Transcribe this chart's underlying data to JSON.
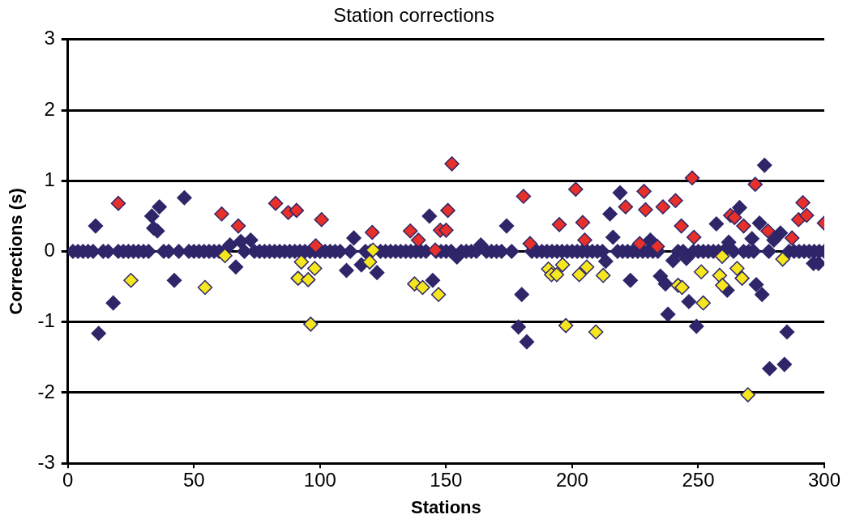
{
  "chart_data": {
    "type": "scatter",
    "title": "Station corrections",
    "xlabel": "Stations",
    "ylabel": "Corrections (s)",
    "xlim": [
      0,
      300
    ],
    "xticks": [
      0,
      50,
      100,
      150,
      200,
      250,
      300
    ],
    "ylim": [
      -3,
      3
    ],
    "yticks": [
      -3,
      -2,
      -1,
      0,
      1,
      2,
      3
    ],
    "grid": "y",
    "marker": "diamond",
    "legend": false,
    "series": [
      {
        "color": "#2e2669",
        "x": [
          2,
          4,
          6,
          8,
          10,
          14,
          16,
          20,
          22,
          24,
          26,
          28,
          30,
          32,
          38,
          40,
          44,
          48,
          50,
          52,
          54,
          56,
          58,
          60,
          62,
          70,
          74,
          76,
          78,
          80,
          82,
          84,
          86,
          88,
          90,
          92,
          94,
          96,
          98,
          100,
          102,
          104,
          106,
          108,
          112,
          118,
          120,
          124,
          126,
          128,
          130,
          132,
          134,
          136,
          138,
          140,
          142,
          146,
          148,
          150,
          152,
          156,
          158,
          160,
          162,
          166,
          168,
          170,
          172,
          176,
          184,
          186,
          188,
          190,
          192,
          194,
          196,
          198,
          200,
          202,
          204,
          206,
          208,
          210,
          212,
          218,
          220,
          222,
          224,
          226,
          228,
          230,
          232,
          234,
          242,
          244,
          248,
          250,
          252,
          254,
          256,
          258,
          260,
          264,
          268,
          270,
          272,
          278,
          286,
          288,
          290,
          292,
          294,
          296,
          298,
          300,
          11,
          12.2,
          18,
          33.3,
          34,
          35.5,
          36.3,
          42.2,
          46.2,
          64.3,
          66.6,
          68.6,
          72.5,
          110.5,
          113.4,
          116.4,
          122.6,
          143.4,
          144.7,
          154.3,
          163.8,
          174,
          178.7,
          180,
          182,
          213.3,
          215,
          216.2,
          219,
          223.1,
          231,
          235,
          237,
          238,
          240,
          245.3,
          246.3,
          249.3,
          257.2,
          261.5,
          262.1,
          266.4,
          271.3,
          273,
          274.3,
          275.3,
          276.3,
          278.3,
          280,
          282.6,
          284.2,
          285.2,
          295.7,
          297.7
        ],
        "values": [
          0,
          0,
          0,
          0,
          0,
          0,
          0,
          0,
          0,
          0,
          0,
          0,
          0,
          0,
          0,
          0,
          0,
          0,
          0,
          0,
          0,
          0,
          0,
          0,
          0,
          0,
          0,
          0,
          0,
          0,
          0,
          0,
          0,
          0,
          0,
          0,
          0,
          0,
          0,
          0,
          0,
          0,
          0,
          0,
          0,
          0,
          0,
          0,
          0,
          0,
          0,
          0,
          0,
          0,
          0,
          0,
          0,
          0,
          0,
          0,
          0,
          0,
          0,
          0,
          0,
          0,
          0,
          0,
          0,
          0,
          0,
          0,
          0,
          0,
          0,
          0,
          0,
          0,
          0,
          0,
          0,
          0,
          0,
          0,
          0,
          0,
          0,
          0,
          0,
          0,
          0,
          0,
          0,
          0,
          0,
          0,
          0,
          0,
          0,
          0,
          0,
          0,
          0,
          0,
          0,
          0,
          0,
          0,
          0,
          0,
          0,
          0,
          0,
          0,
          0,
          0,
          0.36,
          -1.16,
          -0.73,
          0.5,
          0.33,
          0.29,
          0.63,
          -0.41,
          0.76,
          0.09,
          -0.22,
          0.14,
          0.16,
          -0.27,
          0.19,
          -0.19,
          -0.3,
          0.5,
          -0.41,
          -0.08,
          0.09,
          0.36,
          -1.07,
          -0.61,
          -1.28,
          -0.14,
          0.53,
          0.2,
          0.83,
          -0.41,
          0.16,
          -0.35,
          -0.46,
          -0.89,
          -0.13,
          -0.1,
          -0.71,
          -1.06,
          0.39,
          -0.55,
          0.13,
          0.62,
          0.18,
          -0.47,
          0.4,
          -0.61,
          1.22,
          -1.66,
          0.16,
          0.26,
          -1.6,
          -1.14,
          -0.17,
          -0.17
        ]
      },
      {
        "color": "#e8302a",
        "x": [
          20,
          61,
          67.6,
          82.4,
          87.4,
          90.7,
          98.3,
          100.6,
          120.7,
          135.8,
          139,
          145.7,
          147.7,
          150,
          150.7,
          152.3,
          180.7,
          183.3,
          194.9,
          201.4,
          204.2,
          205,
          221.2,
          226.8,
          228.5,
          229.1,
          233.8,
          236,
          241,
          243.3,
          247.6,
          248.3,
          262.8,
          264.4,
          268,
          272.6,
          277.6,
          287.2,
          289.8,
          291.5,
          293,
          300
        ],
        "values": [
          0.68,
          0.53,
          0.36,
          0.68,
          0.55,
          0.58,
          0.08,
          0.45,
          0.27,
          0.29,
          0.16,
          0.02,
          0.3,
          0.3,
          0.58,
          1.24,
          0.78,
          0.11,
          0.38,
          0.88,
          0.41,
          0.16,
          0.63,
          0.11,
          0.85,
          0.59,
          0.07,
          0.63,
          0.72,
          0.36,
          1.04,
          0.2,
          0.51,
          0.48,
          0.36,
          0.95,
          0.29,
          0.19,
          0.45,
          0.69,
          0.51,
          0.4
        ]
      },
      {
        "color": "#f5e61e",
        "x": [
          25,
          54.4,
          62.3,
          91.3,
          92.6,
          95.3,
          96.3,
          97.9,
          119.7,
          121,
          137.5,
          140.7,
          147,
          190.6,
          191.8,
          193.9,
          196.2,
          197.5,
          202.8,
          205.8,
          209.4,
          212.3,
          242,
          243.6,
          251.2,
          252,
          258.5,
          259.5,
          259.6,
          265.4,
          267.4,
          269.7,
          283.5
        ],
        "values": [
          -0.41,
          -0.51,
          -0.06,
          -0.38,
          -0.15,
          -0.4,
          -1.03,
          -0.24,
          -0.15,
          0.02,
          -0.46,
          -0.51,
          -0.61,
          -0.25,
          -0.33,
          -0.33,
          -0.19,
          -1.05,
          -0.33,
          -0.22,
          -1.14,
          -0.34,
          -0.48,
          -0.51,
          -0.29,
          -0.73,
          -0.34,
          -0.07,
          -0.48,
          -0.24,
          -0.38,
          -2.03,
          -0.11
        ]
      }
    ]
  }
}
